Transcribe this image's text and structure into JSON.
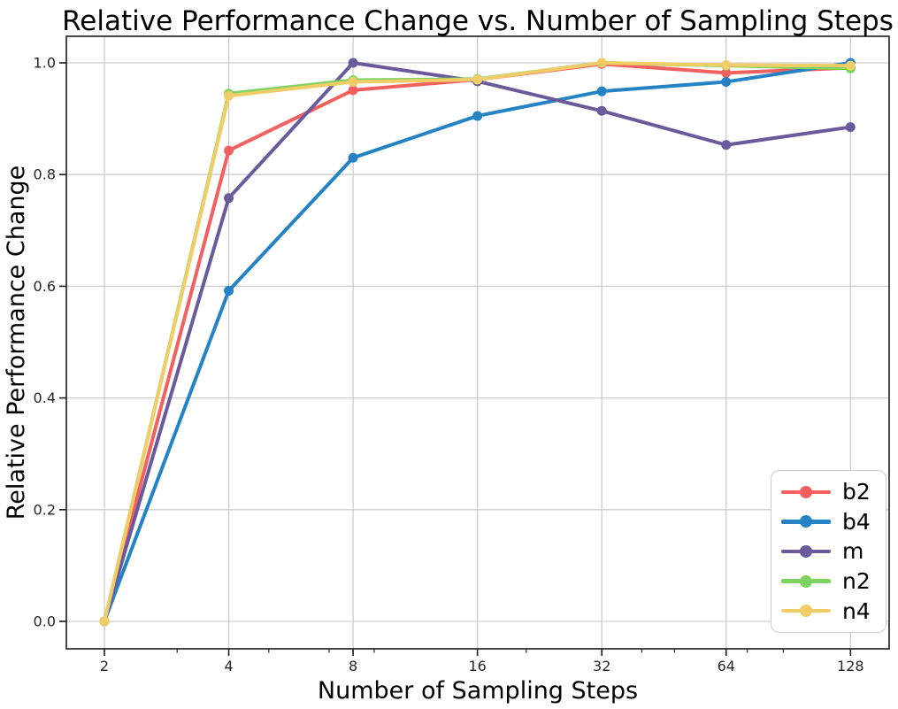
{
  "chart_data": {
    "type": "line",
    "title": "Relative Performance Change vs. Number of Sampling Steps",
    "xlabel": "Number of Sampling Steps",
    "ylabel": "Relative Performance Change",
    "x_scale": "log2",
    "x": [
      2,
      4,
      8,
      16,
      32,
      64,
      128
    ],
    "x_tick_labels": [
      "2",
      "4",
      "8",
      "16",
      "32",
      "64",
      "128"
    ],
    "x_minor_ticks": [
      3,
      5,
      7,
      9,
      21,
      40,
      48,
      72,
      88
    ],
    "y_ticks": [
      0.0,
      0.2,
      0.4,
      0.6,
      0.8,
      1.0
    ],
    "y_tick_labels": [
      "0.0",
      "0.2",
      "0.4",
      "0.6",
      "0.8",
      "1.0"
    ],
    "ylim": [
      -0.05,
      1.05
    ],
    "grid": true,
    "legend_position": "lower right",
    "series": [
      {
        "name": "b2",
        "color": "#f45f5f",
        "values": [
          0.0,
          0.843,
          0.951,
          0.97,
          0.998,
          0.982,
          0.991
        ]
      },
      {
        "name": "b4",
        "color": "#2383c5",
        "values": [
          0.0,
          0.592,
          0.83,
          0.905,
          0.949,
          0.966,
          1.0
        ]
      },
      {
        "name": "m",
        "color": "#6a5a9c",
        "values": [
          0.0,
          0.758,
          1.0,
          0.967,
          0.914,
          0.853,
          0.885
        ]
      },
      {
        "name": "n2",
        "color": "#7ed25f",
        "values": [
          0.0,
          0.945,
          0.969,
          0.971,
          1.0,
          0.995,
          0.99
        ]
      },
      {
        "name": "n4",
        "color": "#f1cd68",
        "values": [
          0.0,
          0.941,
          0.966,
          0.97,
          1.0,
          0.996,
          0.995
        ]
      }
    ]
  },
  "colors": {
    "background": "#ffffff",
    "grid": "#cdcdcd",
    "spine": "#1a1a1a",
    "tick": "#1a1a1a",
    "legend_border": "#cccccc",
    "text": "#000000"
  }
}
